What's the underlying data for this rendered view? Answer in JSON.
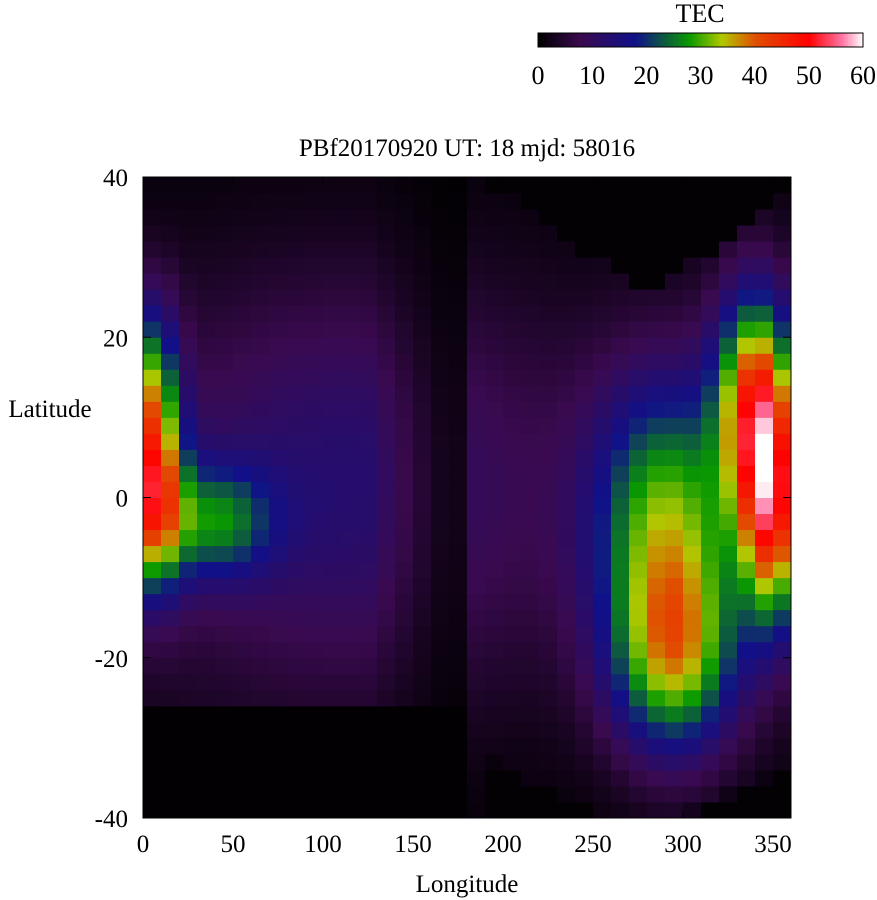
{
  "chart_data": {
    "type": "heatmap",
    "title": "PBf20170920  UT: 18  mjd: 58016",
    "xlabel": "Longitude",
    "ylabel": "Latitude",
    "xlim": [
      0,
      360
    ],
    "ylim": [
      -40,
      40
    ],
    "x_ticks": [
      "0",
      "50",
      "100",
      "150",
      "200",
      "250",
      "300",
      "350"
    ],
    "y_ticks": [
      "40",
      "20",
      "0",
      "-20",
      "-40"
    ],
    "grid": false,
    "colorbar": {
      "label": "TEC",
      "range": [
        0,
        60
      ],
      "ticks": [
        "0",
        "10",
        "20",
        "30",
        "40",
        "50",
        "60"
      ],
      "stops": [
        {
          "value": 0,
          "color": "#000000"
        },
        {
          "value": 8,
          "color": "#3a0a50"
        },
        {
          "value": 18,
          "color": "#10108a"
        },
        {
          "value": 28,
          "color": "#0a9a00"
        },
        {
          "value": 34,
          "color": "#b0c800"
        },
        {
          "value": 40,
          "color": "#e05000"
        },
        {
          "value": 50,
          "color": "#ff0000"
        },
        {
          "value": 56,
          "color": "#ff70a0"
        },
        {
          "value": 60,
          "color": "#ffffff"
        }
      ]
    },
    "grid_cells": {
      "lon_step": 10,
      "lat_step": 2
    },
    "features": [
      {
        "lon": 5,
        "lat": 0,
        "peak": 35,
        "sig_lon": 12,
        "sig_lat": 8
      },
      {
        "lon": 5,
        "lat": 14,
        "peak": 22,
        "sig_lon": 10,
        "sig_lat": 8
      },
      {
        "lon": 40,
        "lat": -3,
        "peak": 18,
        "sig_lon": 22,
        "sig_lat": 5
      },
      {
        "lon": 295,
        "lat": -20,
        "peak": 28,
        "sig_lon": 25,
        "sig_lat": 9
      },
      {
        "lon": 290,
        "lat": -2,
        "peak": 25,
        "sig_lon": 28,
        "sig_lat": 12
      },
      {
        "lon": 340,
        "lat": 12,
        "peak": 37,
        "sig_lon": 15,
        "sig_lat": 10
      },
      {
        "lon": 350,
        "lat": -2,
        "peak": 36,
        "sig_lon": 12,
        "sig_lat": 10
      },
      {
        "lon": 110,
        "lat": 2,
        "peak": 8,
        "sig_lon": 70,
        "sig_lat": 18
      }
    ],
    "background_tec": 5,
    "dark_regions": [
      {
        "lon_min": 0,
        "lon_max": 185,
        "lat_max": -26,
        "note": "south low"
      },
      {
        "lon_min": 190,
        "lon_max": 360,
        "lat_min": 26,
        "center_lon": 280
      },
      {
        "lon_min": 190,
        "lon_max": 360,
        "lat_max": -30,
        "center_lon": 280
      },
      {
        "lon_min": 130,
        "lon_max": 185,
        "note": "night sector"
      }
    ]
  }
}
